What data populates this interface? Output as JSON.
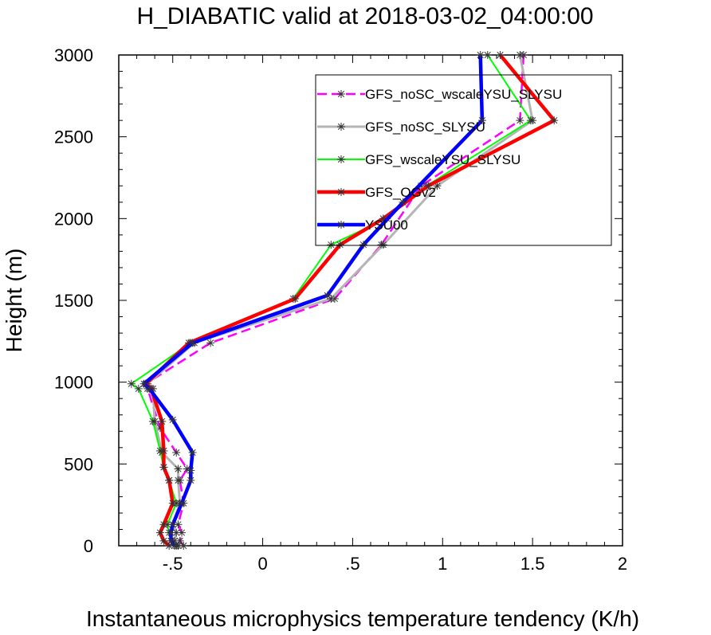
{
  "chart_data": {
    "type": "line",
    "title": "H_DIABATIC valid at 2018-03-02_04:00:00",
    "xlabel": "Instantaneous microphysics temperature tendency (K/h)",
    "ylabel": "Height (m)",
    "xlim": [
      -0.8,
      2.0
    ],
    "ylim": [
      0,
      3000
    ],
    "xticks": [
      -0.5,
      0,
      0.5,
      1,
      1.5,
      2
    ],
    "xtick_labels": [
      "-.5",
      "0",
      ".5",
      "1",
      "1.5",
      "2"
    ],
    "yticks": [
      0,
      500,
      1000,
      1500,
      2000,
      2500,
      3000
    ],
    "ytick_labels": [
      "0",
      "500",
      "1000",
      "1500",
      "2000",
      "2500",
      "3000"
    ],
    "grid": false,
    "legend_position": "top-right",
    "series": [
      {
        "name": "GFS_noSC_wscaleYSU_SLYSU",
        "color": "#ff00ff",
        "dash": "dashed",
        "width": 2.5,
        "points": [
          [
            -0.44,
            0
          ],
          [
            -0.46,
            30
          ],
          [
            -0.45,
            80
          ],
          [
            -0.47,
            130
          ],
          [
            -0.44,
            260
          ],
          [
            -0.46,
            400
          ],
          [
            -0.42,
            470
          ],
          [
            -0.48,
            570
          ],
          [
            -0.57,
            720
          ],
          [
            -0.64,
            960
          ],
          [
            -0.65,
            990
          ],
          [
            -0.29,
            1240
          ],
          [
            0.4,
            1510
          ],
          [
            0.66,
            1840
          ],
          [
            0.88,
            2200
          ],
          [
            1.43,
            2600
          ],
          [
            1.45,
            3000
          ]
        ]
      },
      {
        "name": "GFS_noSC_SLYSU",
        "color": "#b4b4b4",
        "dash": "solid",
        "width": 3,
        "points": [
          [
            -0.47,
            0
          ],
          [
            -0.49,
            30
          ],
          [
            -0.48,
            80
          ],
          [
            -0.5,
            130
          ],
          [
            -0.46,
            260
          ],
          [
            -0.47,
            400
          ],
          [
            -0.47,
            470
          ],
          [
            -0.56,
            570
          ],
          [
            -0.6,
            760
          ],
          [
            -0.61,
            960
          ],
          [
            -0.64,
            990
          ],
          [
            -0.38,
            1240
          ],
          [
            0.38,
            1510
          ],
          [
            0.67,
            1840
          ],
          [
            0.97,
            2200
          ],
          [
            1.5,
            2600
          ],
          [
            1.43,
            3000
          ]
        ]
      },
      {
        "name": "GFS_wscaleYSU_SLYSU",
        "color": "#00ff00",
        "dash": "solid",
        "width": 2,
        "points": [
          [
            -0.48,
            0
          ],
          [
            -0.51,
            30
          ],
          [
            -0.52,
            80
          ],
          [
            -0.53,
            130
          ],
          [
            -0.48,
            260
          ],
          [
            -0.52,
            400
          ],
          [
            -0.55,
            480
          ],
          [
            -0.57,
            580
          ],
          [
            -0.61,
            760
          ],
          [
            -0.69,
            960
          ],
          [
            -0.73,
            990
          ],
          [
            -0.4,
            1240
          ],
          [
            0.17,
            1510
          ],
          [
            0.38,
            1840
          ],
          [
            0.69,
            2000
          ],
          [
            0.91,
            2200
          ],
          [
            1.49,
            2600
          ],
          [
            1.25,
            3000
          ]
        ]
      },
      {
        "name": "GFS_OGv2",
        "color": "#ff0000",
        "dash": "solid",
        "width": 4.5,
        "points": [
          [
            -0.52,
            0
          ],
          [
            -0.55,
            30
          ],
          [
            -0.57,
            80
          ],
          [
            -0.55,
            130
          ],
          [
            -0.5,
            260
          ],
          [
            -0.52,
            400
          ],
          [
            -0.55,
            480
          ],
          [
            -0.55,
            580
          ],
          [
            -0.56,
            760
          ],
          [
            -0.62,
            960
          ],
          [
            -0.65,
            990
          ],
          [
            -0.41,
            1240
          ],
          [
            0.18,
            1510
          ],
          [
            0.43,
            1840
          ],
          [
            0.67,
            2000
          ],
          [
            0.92,
            2200
          ],
          [
            1.62,
            2600
          ],
          [
            1.32,
            3000
          ]
        ]
      },
      {
        "name": "YSU00",
        "color": "#0000ff",
        "dash": "solid",
        "width": 4.5,
        "points": [
          [
            -0.49,
            0
          ],
          [
            -0.51,
            30
          ],
          [
            -0.51,
            80
          ],
          [
            -0.5,
            130
          ],
          [
            -0.45,
            260
          ],
          [
            -0.4,
            400
          ],
          [
            -0.4,
            460
          ],
          [
            -0.39,
            570
          ],
          [
            -0.5,
            770
          ],
          [
            -0.63,
            960
          ],
          [
            -0.66,
            990
          ],
          [
            -0.39,
            1240
          ],
          [
            0.36,
            1530
          ],
          [
            0.56,
            1840
          ],
          [
            0.78,
            2100
          ],
          [
            1.22,
            2600
          ],
          [
            1.21,
            3000
          ]
        ]
      }
    ]
  }
}
